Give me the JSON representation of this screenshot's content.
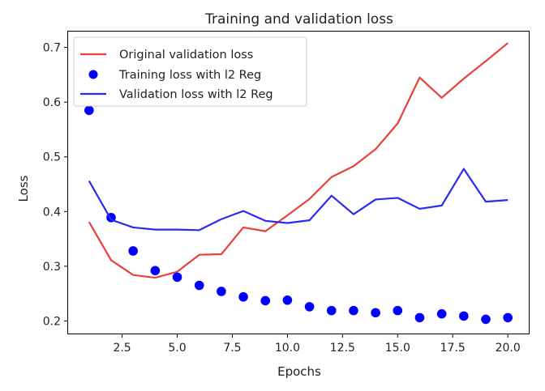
{
  "chart_data": {
    "type": "line",
    "title": "Training and validation loss",
    "xlabel": "Epochs",
    "ylabel": "Loss",
    "xlim": [
      0.05,
      20.95
    ],
    "ylim": [
      0.177,
      0.729
    ],
    "xticks": [
      2.5,
      5.0,
      7.5,
      10.0,
      12.5,
      15.0,
      17.5,
      20.0
    ],
    "xtick_labels": [
      "2.5",
      "5.0",
      "7.5",
      "10.0",
      "12.5",
      "15.0",
      "17.5",
      "20.0"
    ],
    "yticks": [
      0.2,
      0.3,
      0.4,
      0.5,
      0.6,
      0.7
    ],
    "ytick_labels": [
      "0.2",
      "0.3",
      "0.4",
      "0.5",
      "0.6",
      "0.7"
    ],
    "grid": false,
    "legend_position": "top-left",
    "x": [
      1,
      2,
      3,
      4,
      5,
      6,
      7,
      8,
      9,
      10,
      11,
      12,
      13,
      14,
      15,
      16,
      17,
      18,
      19,
      20
    ],
    "series": [
      {
        "name": "Original validation loss",
        "style": "line",
        "color": "#e8413c",
        "values": [
          0.381,
          0.311,
          0.284,
          0.279,
          0.29,
          0.321,
          0.322,
          0.371,
          0.364,
          0.393,
          0.423,
          0.463,
          0.483,
          0.514,
          0.561,
          0.645,
          0.608,
          0.643,
          0.675,
          0.708
        ]
      },
      {
        "name": "Training loss with l2 Reg",
        "style": "scatter",
        "color": "#0000ff",
        "values": [
          0.585,
          0.389,
          0.328,
          0.292,
          0.28,
          0.265,
          0.254,
          0.244,
          0.237,
          0.238,
          0.226,
          0.219,
          0.219,
          0.215,
          0.219,
          0.206,
          0.213,
          0.209,
          0.203,
          0.206
        ]
      },
      {
        "name": "Validation loss with l2 Reg",
        "style": "line",
        "color": "#2a2af0",
        "values": [
          0.456,
          0.385,
          0.371,
          0.367,
          0.367,
          0.366,
          0.386,
          0.401,
          0.383,
          0.379,
          0.384,
          0.429,
          0.395,
          0.422,
          0.425,
          0.405,
          0.411,
          0.478,
          0.418,
          0.421
        ]
      }
    ]
  }
}
